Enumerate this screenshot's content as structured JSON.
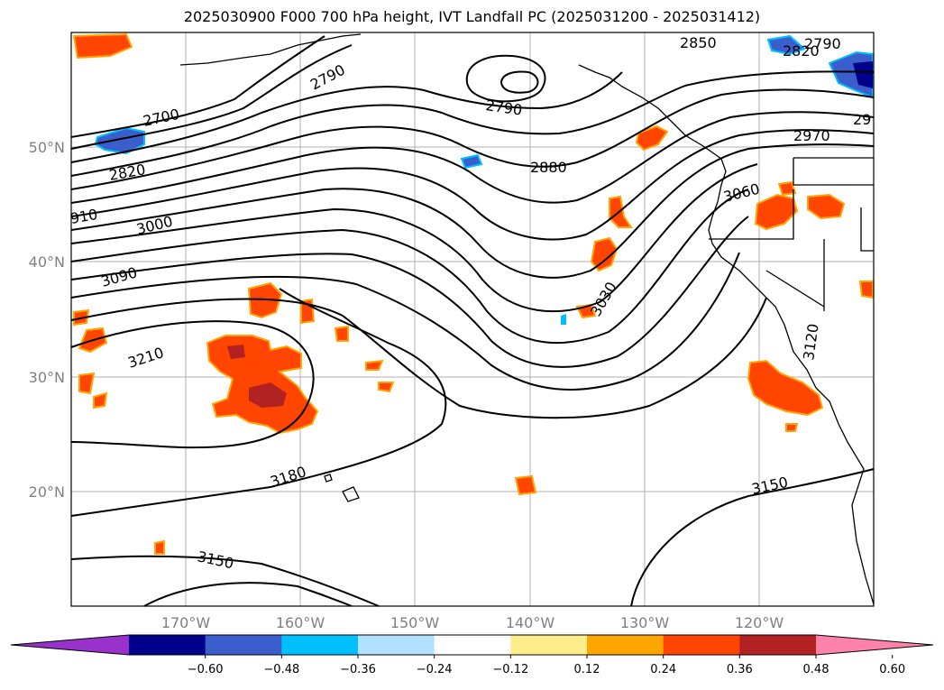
{
  "title": "2025030900 F000 700 hPa height, IVT Landfall PC (2025031200 - 2025031412)",
  "map": {
    "projection": "PlateCarree",
    "lon_range": [
      -180,
      -110
    ],
    "lat_range": [
      10,
      60
    ],
    "lon_ticks": [
      "170°W",
      "160°W",
      "150°W",
      "140°W",
      "130°W",
      "120°W"
    ],
    "lat_ticks": [
      "50°N",
      "40°N",
      "30°N",
      "20°N"
    ],
    "gridlines": true,
    "height_contour_labels": [
      "2790",
      "2850",
      "2790",
      "2820",
      "2700",
      "2790",
      "2880",
      "2970",
      "29",
      "2820",
      "3000",
      "910",
      "3090",
      "3060",
      "3030",
      "3210",
      "3120",
      "3180",
      "3150",
      "3150"
    ]
  },
  "colorbar": {
    "ticks": [
      "−0.60",
      "−0.48",
      "−0.36",
      "−0.24",
      "−0.12",
      "0.12",
      "0.24",
      "0.36",
      "0.48",
      "0.60"
    ],
    "colors": [
      "#9932cc",
      "#00008b",
      "#3a5fcd",
      "#00bfff",
      "#b0e2ff",
      "#ffffff",
      "#ffec8b",
      "#ffa500",
      "#ff4500",
      "#b22222",
      "#ff82ab"
    ],
    "extend": "both"
  },
  "fills": {
    "positive": "#ff4500",
    "strong_positive": "#b22222",
    "edge_positive": "#ffa500",
    "negative": "#3a5fcd",
    "edge_negative": "#00bfff"
  }
}
